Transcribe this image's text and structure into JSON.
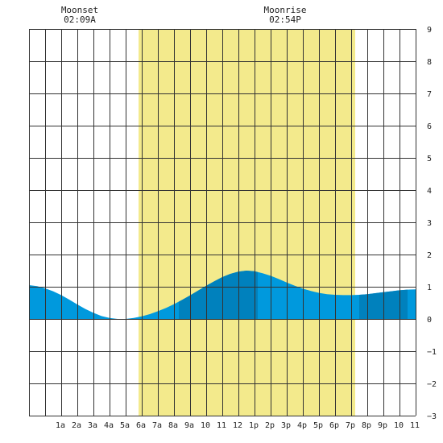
{
  "chart_data": {
    "type": "area",
    "title": "",
    "xlabel": "",
    "ylabel": "",
    "x_unit": "hour of day",
    "xlim": [
      -1,
      23
    ],
    "ylim": [
      -3,
      9
    ],
    "y_ticks": [
      -3,
      -2,
      -1,
      0,
      1,
      2,
      3,
      4,
      5,
      6,
      7,
      8,
      9
    ],
    "x_tick_labels": [
      {
        "x": 0.95,
        "label": "1a"
      },
      {
        "x": 1.95,
        "label": "2a"
      },
      {
        "x": 2.95,
        "label": "3a"
      },
      {
        "x": 3.95,
        "label": "4a"
      },
      {
        "x": 4.95,
        "label": "5a"
      },
      {
        "x": 5.95,
        "label": "6a"
      },
      {
        "x": 6.95,
        "label": "7a"
      },
      {
        "x": 7.95,
        "label": "8a"
      },
      {
        "x": 8.95,
        "label": "9a"
      },
      {
        "x": 9.95,
        "label": "10"
      },
      {
        "x": 10.95,
        "label": "11"
      },
      {
        "x": 11.95,
        "label": "12"
      },
      {
        "x": 12.95,
        "label": "1p"
      },
      {
        "x": 13.95,
        "label": "2p"
      },
      {
        "x": 14.95,
        "label": "3p"
      },
      {
        "x": 15.95,
        "label": "4p"
      },
      {
        "x": 16.95,
        "label": "5p"
      },
      {
        "x": 17.95,
        "label": "6p"
      },
      {
        "x": 18.95,
        "label": "7p"
      },
      {
        "x": 19.95,
        "label": "8p"
      },
      {
        "x": 20.95,
        "label": "9p"
      },
      {
        "x": 21.95,
        "label": "10"
      },
      {
        "x": 22.95,
        "label": "11"
      }
    ],
    "daylight": {
      "start": 5.8,
      "end": 19.25
    },
    "night_shade_bands": [
      [
        8.3,
        13.2
      ],
      [
        19.5,
        22.5
      ]
    ],
    "tide": {
      "x": [
        -1,
        -0.5,
        0,
        0.5,
        1,
        1.5,
        2,
        2.5,
        3,
        3.5,
        4,
        4.5,
        5,
        5.5,
        6,
        6.5,
        7,
        7.5,
        8,
        8.5,
        9,
        9.5,
        10,
        10.5,
        11,
        11.5,
        12,
        12.5,
        13,
        13.5,
        14,
        14.5,
        15,
        15.5,
        16,
        16.5,
        17,
        17.5,
        18,
        18.5,
        19,
        19.5,
        20,
        20.5,
        21,
        21.5,
        22,
        22.5,
        23
      ],
      "y": [
        1.05,
        1.02,
        0.95,
        0.86,
        0.74,
        0.6,
        0.45,
        0.31,
        0.19,
        0.09,
        0.03,
        0.0,
        0.0,
        0.03,
        0.08,
        0.15,
        0.24,
        0.34,
        0.46,
        0.59,
        0.73,
        0.88,
        1.03,
        1.17,
        1.3,
        1.4,
        1.47,
        1.5,
        1.48,
        1.42,
        1.34,
        1.24,
        1.13,
        1.03,
        0.94,
        0.87,
        0.81,
        0.77,
        0.75,
        0.74,
        0.74,
        0.75,
        0.77,
        0.8,
        0.83,
        0.86,
        0.89,
        0.91,
        0.92
      ]
    },
    "annotations": [
      {
        "x": 2.15,
        "title": "Moonset",
        "time": "02:09A"
      },
      {
        "x": 14.9,
        "title": "Moonrise",
        "time": "02:54P"
      }
    ],
    "grid": true,
    "colors": {
      "daylight": "#f3ea8c",
      "tide": "#0099dd",
      "tide_shade": "#0081bd",
      "grid": "#333333",
      "axis_text": "#222222"
    }
  }
}
